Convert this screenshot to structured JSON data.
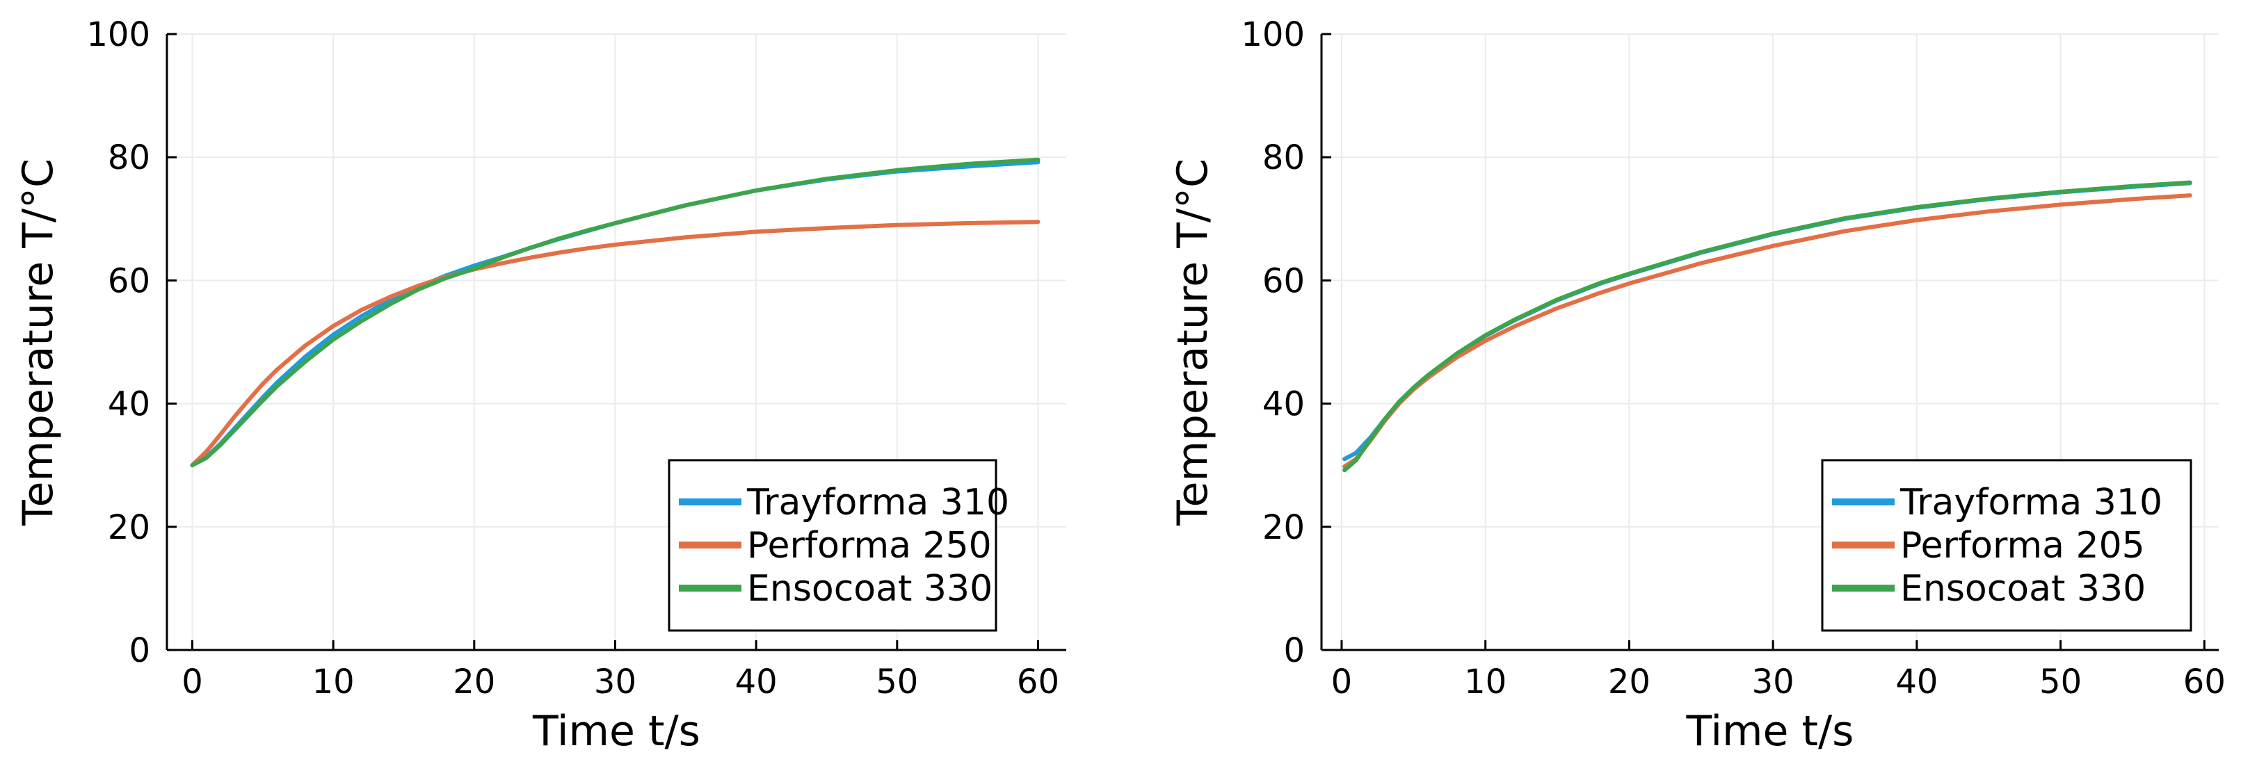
{
  "chart_data": [
    {
      "type": "line",
      "title": "",
      "xlabel": "Time t/s",
      "ylabel": "Temperature T/°C",
      "xlim": [
        -1.8,
        62
      ],
      "ylim": [
        0,
        100
      ],
      "xticks": [
        0,
        10,
        20,
        30,
        40,
        50,
        60
      ],
      "xtick_labels": [
        "0",
        "10",
        "20",
        "30",
        "40",
        "50",
        "60"
      ],
      "yticks": [
        0,
        20,
        40,
        60,
        80,
        100
      ],
      "ytick_labels": [
        "0",
        "20",
        "40",
        "60",
        "80",
        "100"
      ],
      "grid": true,
      "legend_position": "bottom-right",
      "series": [
        {
          "name": "Trayforma 310",
          "color": "#1f9bde",
          "x": [
            0,
            1,
            2,
            3,
            4,
            5,
            6,
            8,
            10,
            12,
            14,
            16,
            18,
            20,
            22,
            24,
            26,
            28,
            30,
            35,
            40,
            45,
            50,
            55,
            60
          ],
          "y": [
            30,
            31.3,
            33.5,
            36.0,
            38.5,
            41.0,
            43.4,
            47.6,
            51.2,
            54.2,
            56.8,
            58.9,
            60.8,
            62.4,
            63.8,
            65.3,
            66.7,
            68.0,
            69.3,
            72.2,
            74.6,
            76.4,
            77.7,
            78.5,
            79.2
          ]
        },
        {
          "name": "Performa 250",
          "color": "#e26f46",
          "x": [
            0,
            1,
            2,
            3,
            4,
            5,
            6,
            8,
            10,
            12,
            14,
            16,
            18,
            20,
            22,
            24,
            26,
            28,
            30,
            35,
            40,
            45,
            50,
            55,
            60
          ],
          "y": [
            30,
            32.2,
            35.0,
            37.9,
            40.6,
            43.2,
            45.5,
            49.4,
            52.6,
            55.2,
            57.3,
            59.1,
            60.6,
            61.8,
            62.8,
            63.7,
            64.5,
            65.2,
            65.8,
            67.0,
            67.9,
            68.5,
            69.0,
            69.3,
            69.5
          ]
        },
        {
          "name": "Ensocoat 330",
          "color": "#3da44d",
          "x": [
            0,
            1,
            2,
            3,
            4,
            5,
            6,
            8,
            10,
            12,
            14,
            16,
            18,
            20,
            22,
            24,
            26,
            28,
            30,
            35,
            40,
            45,
            50,
            55,
            60
          ],
          "y": [
            30,
            31.2,
            33.3,
            35.7,
            38.1,
            40.5,
            42.8,
            46.8,
            50.4,
            53.4,
            56.1,
            58.5,
            60.4,
            61.9,
            63.7,
            65.3,
            66.8,
            68.1,
            69.3,
            72.2,
            74.6,
            76.5,
            77.9,
            78.9,
            79.6
          ]
        }
      ]
    },
    {
      "type": "line",
      "title": "",
      "xlabel": "Time t/s",
      "ylabel": "Temperature T/°C",
      "xlim": [
        -1.4,
        61
      ],
      "ylim": [
        0,
        100
      ],
      "xticks": [
        0,
        10,
        20,
        30,
        40,
        50,
        60
      ],
      "xtick_labels": [
        "0",
        "10",
        "20",
        "30",
        "40",
        "50",
        "60"
      ],
      "yticks": [
        0,
        20,
        40,
        60,
        80,
        100
      ],
      "ytick_labels": [
        "0",
        "20",
        "40",
        "60",
        "80",
        "100"
      ],
      "grid": true,
      "legend_position": "bottom-right",
      "series": [
        {
          "name": "Trayforma 310",
          "color": "#1f9bde",
          "x": [
            0.2,
            1,
            2,
            3,
            4,
            5,
            6,
            8,
            10,
            12,
            15,
            18,
            20,
            25,
            30,
            35,
            40,
            45,
            50,
            55,
            59
          ],
          "y": [
            31.0,
            32.0,
            34.5,
            37.5,
            40.2,
            42.5,
            44.5,
            48.0,
            51.0,
            53.5,
            56.8,
            59.5,
            61.0,
            64.5,
            67.5,
            70.0,
            71.8,
            73.2,
            74.3,
            75.2,
            75.8
          ]
        },
        {
          "name": "Performa 205",
          "color": "#e26f46",
          "x": [
            0.2,
            1,
            2,
            3,
            4,
            5,
            6,
            8,
            10,
            12,
            15,
            18,
            20,
            25,
            30,
            35,
            40,
            45,
            50,
            55,
            59
          ],
          "y": [
            29.8,
            31.0,
            34.0,
            37.2,
            40.0,
            42.3,
            44.2,
            47.5,
            50.2,
            52.5,
            55.5,
            58.0,
            59.5,
            62.8,
            65.6,
            68.0,
            69.8,
            71.2,
            72.3,
            73.2,
            73.8
          ]
        },
        {
          "name": "Ensocoat 330",
          "color": "#3da44d",
          "x": [
            0.2,
            1,
            2,
            3,
            4,
            5,
            6,
            8,
            10,
            12,
            15,
            18,
            20,
            25,
            30,
            35,
            40,
            45,
            50,
            55,
            59
          ],
          "y": [
            29.2,
            30.8,
            34.2,
            37.5,
            40.3,
            42.6,
            44.6,
            48.1,
            51.1,
            53.6,
            56.9,
            59.6,
            61.1,
            64.6,
            67.6,
            70.1,
            71.9,
            73.3,
            74.4,
            75.3,
            75.9
          ]
        }
      ]
    }
  ]
}
